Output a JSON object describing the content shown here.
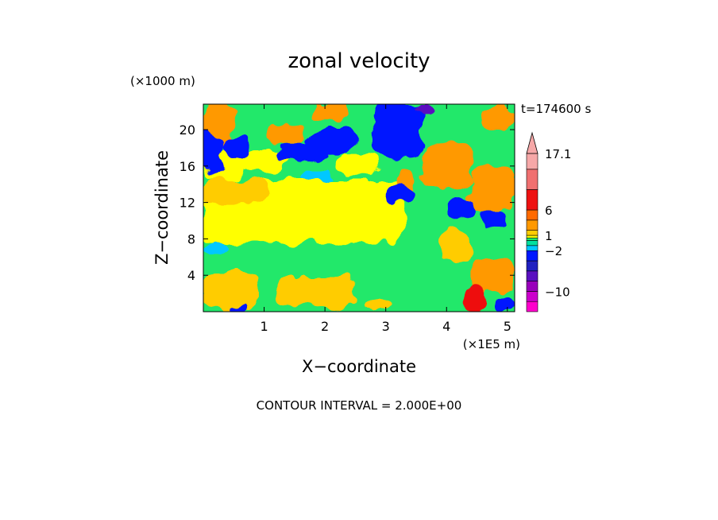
{
  "chart_data": {
    "type": "heatmap",
    "title": "zonal velocity",
    "xlabel": "X−coordinate",
    "ylabel": "Z−coordinate",
    "x_unit": "(×1E5 m)",
    "y_unit": "(×1000 m)",
    "time_label": "t=174600 s",
    "contour_note": "CONTOUR INTERVAL = 2.000E+00",
    "xlim": [
      0.0,
      5.12
    ],
    "ylim": [
      0.0,
      22.8
    ],
    "x_ticks": [
      "1",
      "2",
      "3",
      "4",
      "5"
    ],
    "x_tick_values": [
      1,
      2,
      3,
      4,
      5
    ],
    "y_ticks": [
      "4",
      "8",
      "12",
      "16",
      "20"
    ],
    "y_tick_values": [
      4,
      8,
      12,
      16,
      20
    ],
    "colorbar": {
      "levels": [
        {
          "lo": -14,
          "hi": -12,
          "color": "#ff00cc"
        },
        {
          "lo": -12,
          "hi": -10,
          "color": "#cc00cc"
        },
        {
          "lo": -10,
          "hi": -8,
          "color": "#9900bb"
        },
        {
          "lo": -8,
          "hi": -6,
          "color": "#5a10c0"
        },
        {
          "lo": -6,
          "hi": -4,
          "color": "#2020c0"
        },
        {
          "lo": -4,
          "hi": -2,
          "color": "#0018ff"
        },
        {
          "lo": -2,
          "hi": -1,
          "color": "#00c8ff"
        },
        {
          "lo": -1,
          "hi": 0,
          "color": "#00e0a0"
        },
        {
          "lo": 0,
          "hi": 0.5,
          "color": "#22e86a"
        },
        {
          "lo": 0.5,
          "hi": 1,
          "color": "#ffff00"
        },
        {
          "lo": 1,
          "hi": 2,
          "color": "#ffcc00"
        },
        {
          "lo": 2,
          "hi": 4,
          "color": "#ff9900"
        },
        {
          "lo": 4,
          "hi": 6,
          "color": "#ff6a00"
        },
        {
          "lo": 6,
          "hi": 10,
          "color": "#ee1111"
        },
        {
          "lo": 10,
          "hi": 14,
          "color": "#f07070"
        },
        {
          "lo": 14,
          "hi": 17.1,
          "color": "#f6a8a8"
        }
      ],
      "labels": [
        "17.1",
        "6",
        "1",
        "−2",
        "−10"
      ],
      "label_values": [
        17.1,
        6,
        1,
        -2,
        -10
      ],
      "overflow_color": "#f6a8a8"
    },
    "field_regions": [
      {
        "x": [
          0.0,
          5.12
        ],
        "z": [
          0.0,
          22.8
        ],
        "value": 0.2
      },
      {
        "x": [
          0.0,
          3.3
        ],
        "z": [
          7.5,
          14.5
        ],
        "value": 0.8
      },
      {
        "x": [
          0.0,
          1.1
        ],
        "z": [
          12.0,
          14.5
        ],
        "value": 1.5
      },
      {
        "x": [
          0.0,
          0.9
        ],
        "z": [
          0.2,
          4.5
        ],
        "value": 1.5
      },
      {
        "x": [
          1.2,
          2.5
        ],
        "z": [
          0.5,
          3.8
        ],
        "value": 1.5
      },
      {
        "x": [
          2.6,
          3.1
        ],
        "z": [
          0.0,
          1.2
        ],
        "value": 1.5
      },
      {
        "x": [
          0.0,
          0.7
        ],
        "z": [
          14.5,
          17.5
        ],
        "value": 0.8
      },
      {
        "x": [
          0.6,
          1.4
        ],
        "z": [
          15.5,
          18.0
        ],
        "value": 0.8
      },
      {
        "x": [
          2.2,
          2.9
        ],
        "z": [
          15.0,
          17.5
        ],
        "value": 0.8
      },
      {
        "x": [
          0.0,
          0.5
        ],
        "z": [
          18.0,
          22.8
        ],
        "value": 3.0
      },
      {
        "x": [
          1.0,
          1.7
        ],
        "z": [
          18.5,
          20.5
        ],
        "value": 3.0
      },
      {
        "x": [
          1.8,
          2.4
        ],
        "z": [
          21.0,
          22.8
        ],
        "value": 3.0
      },
      {
        "x": [
          3.2,
          3.5
        ],
        "z": [
          13.5,
          15.5
        ],
        "value": 3.0
      },
      {
        "x": [
          3.6,
          4.4
        ],
        "z": [
          13.5,
          18.5
        ],
        "value": 3.0
      },
      {
        "x": [
          4.4,
          5.12
        ],
        "z": [
          11.0,
          16.0
        ],
        "value": 3.0
      },
      {
        "x": [
          4.4,
          5.12
        ],
        "z": [
          2.0,
          6.0
        ],
        "value": 3.0
      },
      {
        "x": [
          3.9,
          4.4
        ],
        "z": [
          5.5,
          9.0
        ],
        "value": 1.5
      },
      {
        "x": [
          1.6,
          2.1
        ],
        "z": [
          14.5,
          15.5
        ],
        "value": -1.5
      },
      {
        "x": [
          0.0,
          0.4
        ],
        "z": [
          6.0,
          7.5
        ],
        "value": -1.5
      },
      {
        "x": [
          0.0,
          0.3
        ],
        "z": [
          15.0,
          19.5
        ],
        "value": -3.0
      },
      {
        "x": [
          0.3,
          0.8
        ],
        "z": [
          17.0,
          19.0
        ],
        "value": -3.0
      },
      {
        "x": [
          1.2,
          2.0
        ],
        "z": [
          16.5,
          18.5
        ],
        "value": -3.0
      },
      {
        "x": [
          1.7,
          2.5
        ],
        "z": [
          17.5,
          20.0
        ],
        "value": -3.0
      },
      {
        "x": [
          2.8,
          3.6
        ],
        "z": [
          17.0,
          22.8
        ],
        "value": -3.0
      },
      {
        "x": [
          3.0,
          3.5
        ],
        "z": [
          12.0,
          14.0
        ],
        "value": -3.0
      },
      {
        "x": [
          3.5,
          3.8
        ],
        "z": [
          21.5,
          22.8
        ],
        "value": -8.0
      },
      {
        "x": [
          4.0,
          4.5
        ],
        "z": [
          10.5,
          12.5
        ],
        "value": -3.0
      },
      {
        "x": [
          4.5,
          5.0
        ],
        "z": [
          9.5,
          11.0
        ],
        "value": -3.0
      },
      {
        "x": [
          4.6,
          5.12
        ],
        "z": [
          20.0,
          22.5
        ],
        "value": 3.0
      },
      {
        "x": [
          4.3,
          4.6
        ],
        "z": [
          0.0,
          3.0
        ],
        "value": 8.0
      },
      {
        "x": [
          0.4,
          0.7
        ],
        "z": [
          0.0,
          0.8
        ],
        "value": -3.0
      },
      {
        "x": [
          4.8,
          5.12
        ],
        "z": [
          0.0,
          1.5
        ],
        "value": -3.0
      }
    ]
  }
}
